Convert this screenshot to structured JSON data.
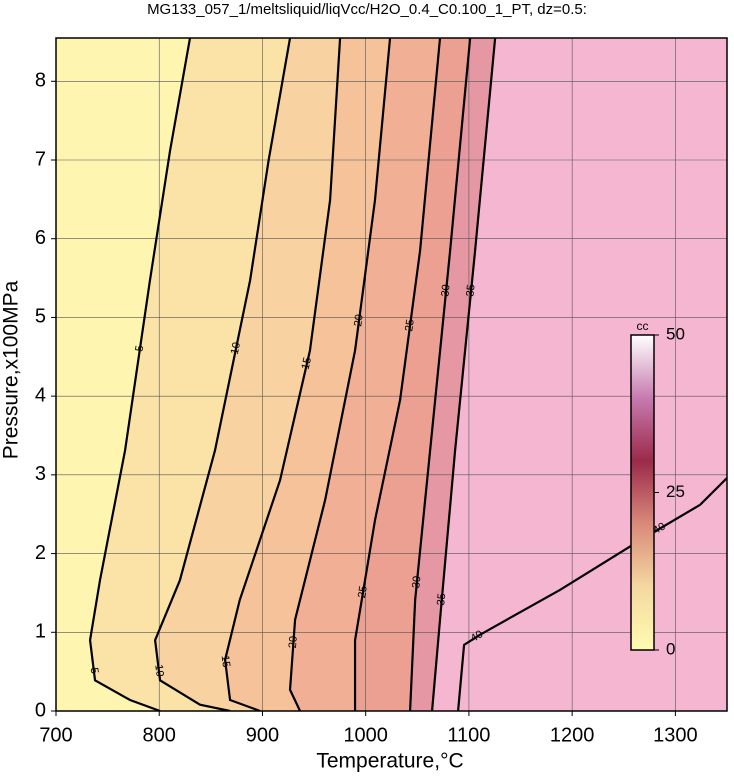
{
  "chart_data": {
    "type": "contour",
    "title": "MG133_057_1/meltsliquid/liqVcc/H2O_0.4_C0.100_1_PT, dz=0.5:",
    "x_label": "Temperature,°C",
    "y_label": "Pressure,x100MPa",
    "xlim": [
      700,
      1350
    ],
    "ylim": [
      0,
      8.55
    ],
    "xticks": [
      700,
      800,
      900,
      1000,
      1100,
      1200,
      1300
    ],
    "yticks": [
      0,
      1,
      2,
      3,
      4,
      5,
      6,
      7,
      8
    ],
    "grid": true,
    "contours": [
      {
        "level": 5,
        "color": "#fbe3a8",
        "x": [
          829.8,
          810.5,
          791,
          766.9,
          742.6,
          733,
          737.8,
          771.7,
          800.8
        ],
        "y": [
          8.55,
          7.12,
          5.47,
          3.31,
          1.66,
          0.9,
          0.39,
          0.14,
          0
        ]
      },
      {
        "level": 10,
        "color": "#f8d2a0",
        "x": [
          926.7,
          906,
          888,
          854,
          820,
          796,
          800.8,
          839.5,
          868.6
        ],
        "y": [
          8.55,
          7.0,
          5.47,
          3.31,
          1.66,
          0.9,
          0.39,
          0.08,
          0
        ]
      },
      {
        "level": 15,
        "color": "#f5c29a",
        "x": [
          975.2,
          965.5,
          946,
          917,
          878,
          863.8,
          868.6,
          897.7
        ],
        "y": [
          8.55,
          6.49,
          4.58,
          2.93,
          1.41,
          0.65,
          0.14,
          0
        ]
      },
      {
        "level": 20,
        "color": "#f1b095",
        "x": [
          1023.6,
          1009,
          989.7,
          960.7,
          931.6,
          926.7,
          936.4
        ],
        "y": [
          8.55,
          6.49,
          4.58,
          2.68,
          1.16,
          0.27,
          0
        ]
      },
      {
        "level": 25,
        "color": "#eca092",
        "x": [
          1072,
          1052.7,
          1033.3,
          1009.1,
          989.7,
          989.7
        ],
        "y": [
          8.55,
          5.85,
          3.95,
          2.43,
          0.9,
          0
        ]
      },
      {
        "level": 30,
        "color": "#e598a4",
        "x": [
          1101.2,
          1081.8,
          1062.4,
          1047.9,
          1043
        ],
        "y": [
          8.55,
          5.85,
          3.31,
          1.41,
          0
        ]
      },
      {
        "level": 35,
        "color": "#f4b6d0",
        "x": [
          1125.4,
          1106,
          1086.6,
          1072,
          1064.3
        ],
        "y": [
          8.55,
          5.85,
          3.31,
          1.16,
          0
        ]
      },
      {
        "level": 40,
        "color": "#f6b8d3",
        "x": [
          1089.5,
          1095.3,
          1110.9,
          1188.4,
          1265.9,
          1324,
          1350
        ],
        "y": [
          0,
          0.84,
          0.97,
          1.54,
          2.17,
          2.62,
          2.96
        ]
      }
    ],
    "low_color": "#fdf5b0",
    "background": "#f6b8d3",
    "colorbar": {
      "label": "cc",
      "lim": [
        0,
        50
      ],
      "ticks": [
        0,
        25,
        50
      ],
      "colors": [
        "#fffbb0",
        "#f5d8a0",
        "#d98a7a",
        "#9c2a4a",
        "#c77ab0",
        "#ffffff"
      ]
    }
  }
}
